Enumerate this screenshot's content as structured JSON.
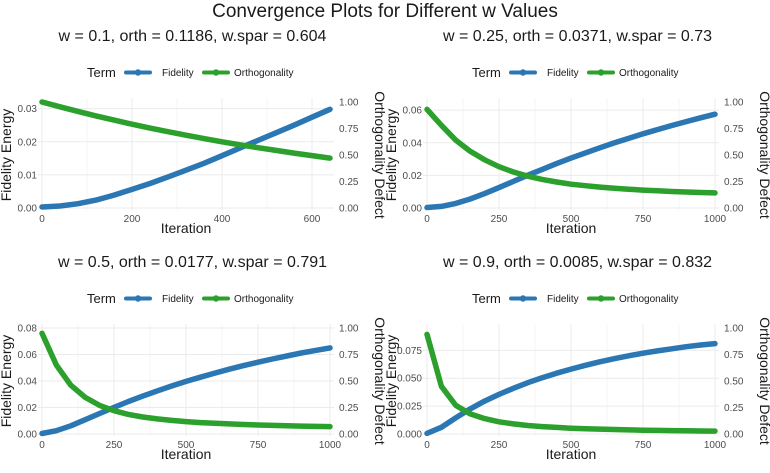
{
  "title": "Convergence Plots for Different w Values",
  "colors": {
    "fidelity": "#2a77b4",
    "orthogonality": "#2ca02c",
    "grid": "#ebebeb",
    "text": "#1a1a1a",
    "tick": "#4d4d4d"
  },
  "chart_data": [
    {
      "type": "line",
      "title": "w = 0.1, orth = 0.1186, w.spar = 0.604",
      "legend_title": "Term",
      "legend_position": "top",
      "xlabel": "Iteration",
      "ylabel_left": "Fidelity Energy",
      "ylabel_right": "Orthogonality Defect",
      "xlim": [
        0,
        640
      ],
      "xticks": [
        0,
        200,
        400,
        600
      ],
      "ylim_left": [
        0,
        0.032
      ],
      "yticks_left": [
        0.0,
        0.01,
        0.02,
        0.03
      ],
      "yticklabels_left": [
        "0.00",
        "0.01",
        "0.02",
        "0.03"
      ],
      "ylim_right": [
        0,
        1.0
      ],
      "yticks_right": [
        0.0,
        0.25,
        0.5,
        0.75,
        1.0
      ],
      "yticklabels_right": [
        "0.00",
        "0.25",
        "0.50",
        "0.75",
        "1.00"
      ],
      "series": [
        {
          "name": "Fidelity",
          "axis": "left",
          "x": [
            0,
            40,
            80,
            120,
            160,
            200,
            240,
            280,
            320,
            360,
            400,
            440,
            480,
            520,
            560,
            600,
            640
          ],
          "y": [
            0.0003,
            0.0006,
            0.0013,
            0.0024,
            0.0039,
            0.0056,
            0.0074,
            0.0094,
            0.0114,
            0.0135,
            0.0158,
            0.0181,
            0.0204,
            0.0227,
            0.025,
            0.0274,
            0.0298
          ]
        },
        {
          "name": "Orthogonality",
          "axis": "right",
          "x": [
            0,
            40,
            80,
            120,
            160,
            200,
            240,
            280,
            320,
            360,
            400,
            440,
            480,
            520,
            560,
            600,
            640
          ],
          "y": [
            1.0,
            0.955,
            0.911,
            0.869,
            0.829,
            0.791,
            0.754,
            0.72,
            0.687,
            0.655,
            0.625,
            0.596,
            0.569,
            0.543,
            0.518,
            0.494,
            0.471
          ]
        }
      ]
    },
    {
      "type": "line",
      "title": "w = 0.25, orth = 0.0371, w.spar = 0.73",
      "legend_title": "Term",
      "legend_position": "top",
      "xlabel": "Iteration",
      "ylabel_left": "Fidelity Energy",
      "ylabel_right": "Orthogonality Defect",
      "xlim": [
        0,
        1000
      ],
      "xticks": [
        0,
        250,
        500,
        750,
        1000
      ],
      "ylim_left": [
        0,
        0.065
      ],
      "yticks_left": [
        0.0,
        0.02,
        0.04,
        0.06
      ],
      "yticklabels_left": [
        "0.00",
        "0.02",
        "0.04",
        "0.06"
      ],
      "ylim_right": [
        0,
        1.0
      ],
      "yticks_right": [
        0.0,
        0.25,
        0.5,
        0.75,
        1.0
      ],
      "yticklabels_right": [
        "0.00",
        "0.25",
        "0.50",
        "0.75",
        "1.00"
      ],
      "series": [
        {
          "name": "Fidelity",
          "axis": "left",
          "x": [
            0,
            50,
            100,
            150,
            200,
            250,
            300,
            350,
            400,
            450,
            500,
            550,
            600,
            650,
            700,
            750,
            800,
            850,
            900,
            950,
            1000
          ],
          "y": [
            0.0003,
            0.001,
            0.0028,
            0.0055,
            0.0088,
            0.0125,
            0.0163,
            0.0201,
            0.0237,
            0.0272,
            0.0306,
            0.0338,
            0.0369,
            0.0399,
            0.0427,
            0.0455,
            0.0481,
            0.0506,
            0.053,
            0.0553,
            0.0575
          ]
        },
        {
          "name": "Orthogonality",
          "axis": "right",
          "x": [
            0,
            50,
            100,
            150,
            200,
            250,
            300,
            350,
            400,
            450,
            500,
            550,
            600,
            650,
            700,
            750,
            800,
            850,
            900,
            950,
            1000
          ],
          "y": [
            0.93,
            0.78,
            0.64,
            0.535,
            0.455,
            0.39,
            0.34,
            0.3,
            0.27,
            0.245,
            0.225,
            0.21,
            0.197,
            0.186,
            0.177,
            0.169,
            0.162,
            0.156,
            0.151,
            0.146,
            0.142
          ]
        }
      ]
    },
    {
      "type": "line",
      "title": "w = 0.5, orth = 0.0177, w.spar = 0.791",
      "legend_title": "Term",
      "legend_position": "top",
      "xlabel": "Iteration",
      "ylabel_left": "Fidelity Energy",
      "ylabel_right": "Orthogonality Defect",
      "xlim": [
        0,
        1000
      ],
      "xticks": [
        0,
        250,
        500,
        750,
        1000
      ],
      "ylim_left": [
        0,
        0.08
      ],
      "yticks_left": [
        0.0,
        0.02,
        0.04,
        0.06,
        0.08
      ],
      "yticklabels_left": [
        "0.00",
        "0.02",
        "0.04",
        "0.06",
        "0.08"
      ],
      "ylim_right": [
        0,
        1.0
      ],
      "yticks_right": [
        0.0,
        0.25,
        0.5,
        0.75,
        1.0
      ],
      "yticklabels_right": [
        "0.00",
        "0.25",
        "0.50",
        "0.75",
        "1.00"
      ],
      "series": [
        {
          "name": "Fidelity",
          "axis": "left",
          "x": [
            0,
            50,
            100,
            150,
            200,
            250,
            300,
            350,
            400,
            450,
            500,
            550,
            600,
            650,
            700,
            750,
            800,
            850,
            900,
            950,
            1000
          ],
          "y": [
            0.0004,
            0.0025,
            0.0062,
            0.0108,
            0.0155,
            0.0201,
            0.0245,
            0.0286,
            0.0325,
            0.0362,
            0.0397,
            0.0429,
            0.046,
            0.0489,
            0.0516,
            0.0542,
            0.0566,
            0.0589,
            0.0611,
            0.0631,
            0.065
          ]
        },
        {
          "name": "Orthogonality",
          "axis": "right",
          "x": [
            0,
            50,
            100,
            150,
            200,
            250,
            300,
            350,
            400,
            450,
            500,
            550,
            600,
            650,
            700,
            750,
            800,
            850,
            900,
            950,
            1000
          ],
          "y": [
            0.95,
            0.65,
            0.46,
            0.345,
            0.27,
            0.22,
            0.185,
            0.16,
            0.142,
            0.128,
            0.117,
            0.108,
            0.101,
            0.095,
            0.09,
            0.085,
            0.081,
            0.078,
            0.075,
            0.072,
            0.07
          ]
        }
      ]
    },
    {
      "type": "line",
      "title": "w = 0.9, orth = 0.0085, w.spar = 0.832",
      "legend_title": "Term",
      "legend_position": "top",
      "xlabel": "Iteration",
      "ylabel_left": "Fidelity Energy",
      "ylabel_right": "Orthogonality Defect",
      "xlim": [
        0,
        1000
      ],
      "xticks": [
        0,
        250,
        500,
        750,
        1000
      ],
      "ylim_left": [
        0,
        0.095
      ],
      "yticks_left": [
        0.0,
        0.025,
        0.05,
        0.075
      ],
      "yticklabels_left": [
        "0.000",
        "0.025",
        "0.050",
        "0.075"
      ],
      "ylim_right": [
        0,
        1.0
      ],
      "yticks_right": [
        0.0,
        0.25,
        0.5,
        0.75,
        1.0
      ],
      "yticklabels_right": [
        "0.00",
        "0.25",
        "0.50",
        "0.75",
        "1.00"
      ],
      "series": [
        {
          "name": "Fidelity",
          "axis": "left",
          "x": [
            0,
            50,
            100,
            150,
            200,
            250,
            300,
            350,
            400,
            450,
            500,
            550,
            600,
            650,
            700,
            750,
            800,
            850,
            900,
            950,
            1000
          ],
          "y": [
            0.0005,
            0.006,
            0.0145,
            0.0225,
            0.0295,
            0.0355,
            0.041,
            0.046,
            0.0505,
            0.0545,
            0.0582,
            0.0616,
            0.0647,
            0.0675,
            0.0701,
            0.0724,
            0.0745,
            0.0764,
            0.0782,
            0.0798,
            0.081
          ]
        },
        {
          "name": "Orthogonality",
          "axis": "right",
          "x": [
            0,
            50,
            100,
            150,
            200,
            250,
            300,
            350,
            400,
            450,
            500,
            550,
            600,
            650,
            700,
            750,
            800,
            850,
            900,
            950,
            1000
          ],
          "y": [
            0.94,
            0.45,
            0.27,
            0.19,
            0.145,
            0.115,
            0.095,
            0.08,
            0.07,
            0.062,
            0.055,
            0.05,
            0.046,
            0.042,
            0.039,
            0.036,
            0.034,
            0.032,
            0.03,
            0.028,
            0.027
          ]
        }
      ]
    }
  ]
}
